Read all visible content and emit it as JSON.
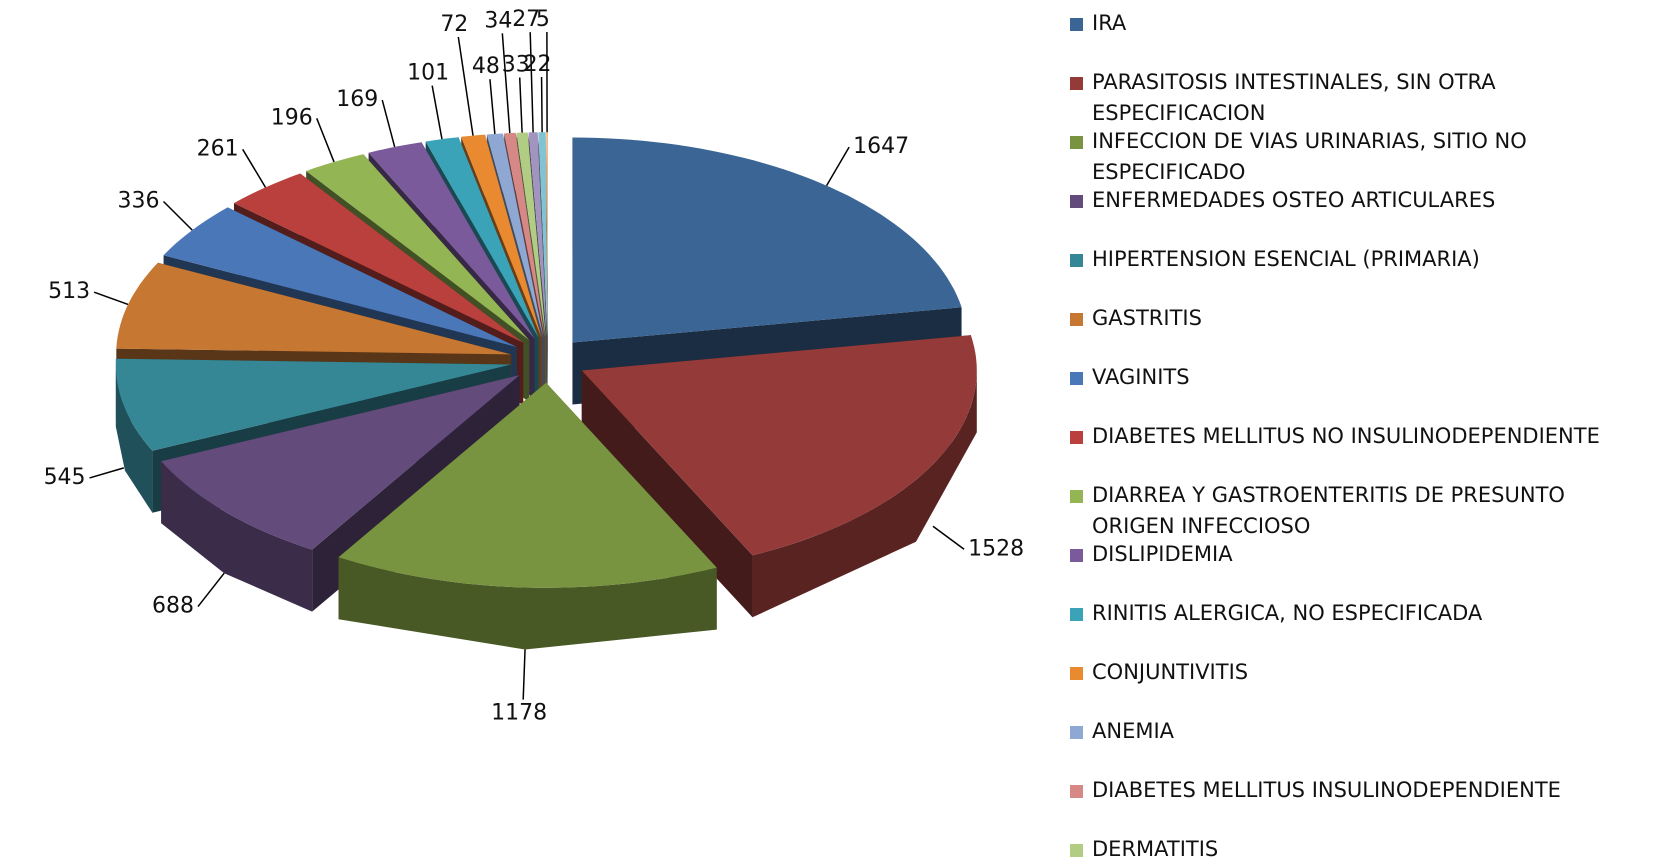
{
  "chart_data": {
    "type": "pie3d",
    "categories": [
      "IRA",
      "PARASITOSIS INTESTINALES, SIN OTRA ESPECIFICACION",
      "INFECCION DE VIAS URINARIAS, SITIO NO ESPECIFICADO",
      "ENFERMEDADES OSTEO ARTICULARES",
      "HIPERTENSION ESENCIAL (PRIMARIA)",
      "GASTRITIS",
      "VAGINITS",
      "DIABETES MELLITUS NO INSULINODEPENDIENTE",
      "DIARREA Y GASTROENTERITIS DE PRESUNTO ORIGEN INFECCIOSO",
      "DISLIPIDEMIA",
      "RINITIS ALERGICA, NO ESPECIFICADA",
      "CONJUNTIVITIS",
      "ANEMIA",
      "DIABETES MELLITUS INSULINODEPENDIENTE",
      "DERMATITIS",
      null,
      null,
      null
    ],
    "values": [
      1647,
      1528,
      1178,
      688,
      545,
      513,
      336,
      261,
      196,
      169,
      101,
      72,
      48,
      34,
      33,
      27,
      22,
      5
    ],
    "colors": [
      "#3a6594",
      "#943b39",
      "#789440",
      "#634b7c",
      "#368796",
      "#c67732",
      "#4a77b8",
      "#b9403d",
      "#93b553",
      "#7b5a9c",
      "#3ba3b8",
      "#ea8a30",
      "#8fa8d3",
      "#d58886",
      "#b1cc83",
      "#a194bf",
      "#82c3d3",
      "#f2b37c"
    ]
  }
}
